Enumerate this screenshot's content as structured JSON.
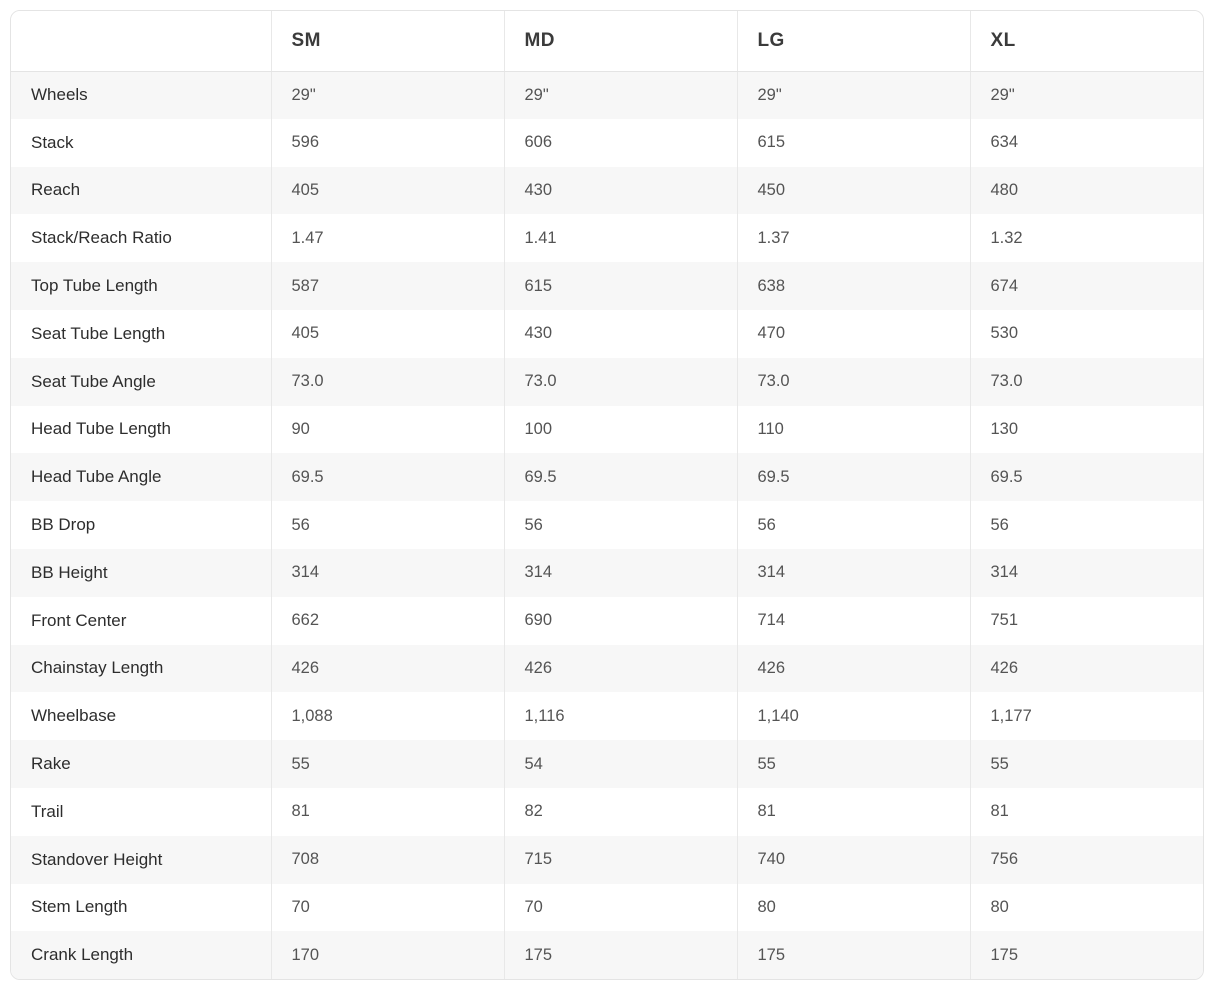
{
  "colors": {
    "accent": "#ed2e58",
    "row_stripe": "#f7f7f7",
    "border": "#e6e6e6",
    "header_text": "#3b3b3b",
    "label_text": "#2d2d2d",
    "value_text": "#545454"
  },
  "table": {
    "column_headers": [
      "SM",
      "MD",
      "LG",
      "XL"
    ],
    "selected_column": "LG",
    "rows": [
      {
        "label": "Wheels",
        "values": [
          "29\"",
          "29\"",
          "29\"",
          "29\""
        ]
      },
      {
        "label": "Stack",
        "values": [
          "596",
          "606",
          "615",
          "634"
        ]
      },
      {
        "label": "Reach",
        "values": [
          "405",
          "430",
          "450",
          "480"
        ]
      },
      {
        "label": "Stack/Reach Ratio",
        "values": [
          "1.47",
          "1.41",
          "1.37",
          "1.32"
        ]
      },
      {
        "label": "Top Tube Length",
        "values": [
          "587",
          "615",
          "638",
          "674"
        ]
      },
      {
        "label": "Seat Tube Length",
        "values": [
          "405",
          "430",
          "470",
          "530"
        ]
      },
      {
        "label": "Seat Tube Angle",
        "values": [
          "73.0",
          "73.0",
          "73.0",
          "73.0"
        ]
      },
      {
        "label": "Head Tube Length",
        "values": [
          "90",
          "100",
          "110",
          "130"
        ]
      },
      {
        "label": "Head Tube Angle",
        "values": [
          "69.5",
          "69.5",
          "69.5",
          "69.5"
        ]
      },
      {
        "label": "BB Drop",
        "values": [
          "56",
          "56",
          "56",
          "56"
        ]
      },
      {
        "label": "BB Height",
        "values": [
          "314",
          "314",
          "314",
          "314"
        ]
      },
      {
        "label": "Front Center",
        "values": [
          "662",
          "690",
          "714",
          "751"
        ]
      },
      {
        "label": "Chainstay Length",
        "values": [
          "426",
          "426",
          "426",
          "426"
        ]
      },
      {
        "label": "Wheelbase",
        "values": [
          "1,088",
          "1,116",
          "1,140",
          "1,177"
        ]
      },
      {
        "label": "Rake",
        "values": [
          "55",
          "54",
          "55",
          "55"
        ]
      },
      {
        "label": "Trail",
        "values": [
          "81",
          "82",
          "81",
          "81"
        ]
      },
      {
        "label": "Standover Height",
        "values": [
          "708",
          "715",
          "740",
          "756"
        ]
      },
      {
        "label": "Stem Length",
        "values": [
          "70",
          "70",
          "80",
          "80"
        ]
      },
      {
        "label": "Crank Length",
        "values": [
          "170",
          "175",
          "175",
          "175"
        ]
      }
    ]
  }
}
